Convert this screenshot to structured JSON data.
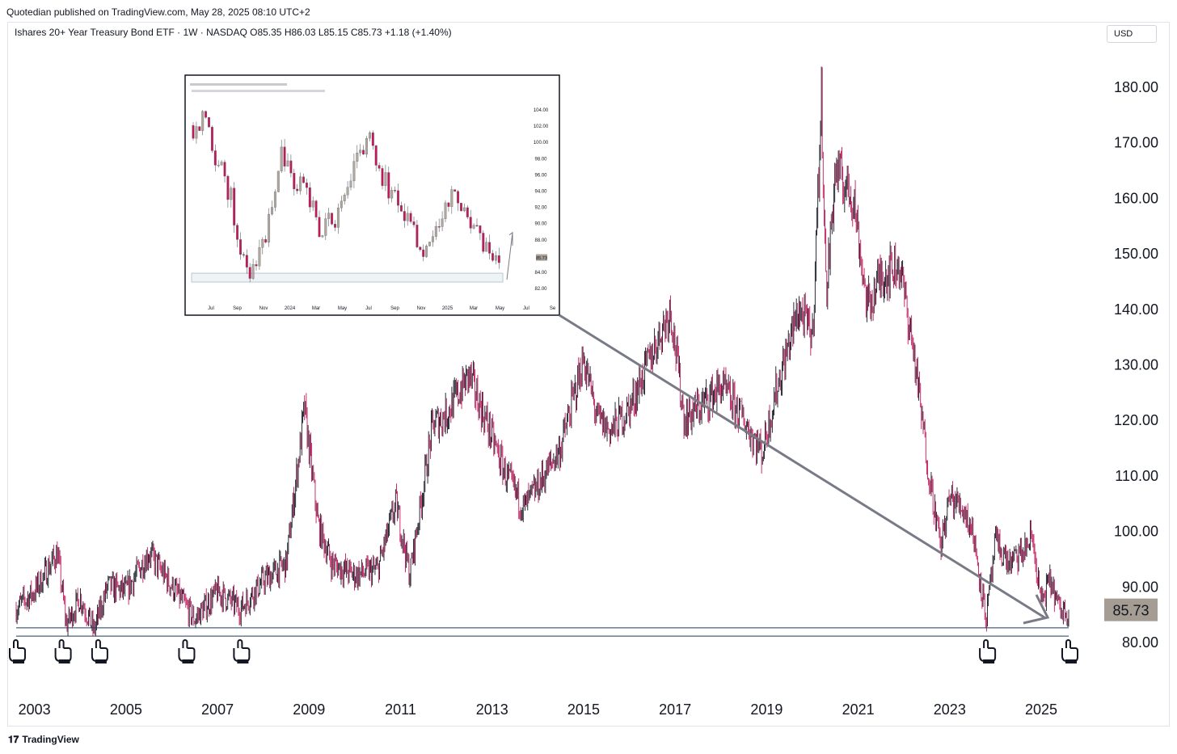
{
  "header": {
    "published": "Quotedian published on TradingView.com, May 28, 2025 08:10 UTC+2",
    "symbol_line": "Ishares 20+ Year Treasury Bond ETF · 1W · NASDAQ  O85.35  H86.03  L85.15  C85.73  +1.18 (+1.40%)",
    "currency": "USD"
  },
  "footer": {
    "brand": "TradingView",
    "logo_glyph": "𝟏𝟕"
  },
  "colors": {
    "up": "#131722",
    "down": "#c2185b",
    "arrow": "#787b86",
    "price_badge": "#a59d93",
    "support": "#1e3a5f"
  },
  "chart_data": [
    {
      "type": "candlestick",
      "title": "",
      "yaxis": {
        "ticks": [
          "180.00",
          "170.00",
          "160.00",
          "150.00",
          "140.00",
          "130.00",
          "120.00",
          "110.00",
          "100.00",
          "90.00",
          "80.00"
        ],
        "ylim": [
          77,
          186
        ]
      },
      "xaxis": {
        "ticks": [
          "2003",
          "2005",
          "2007",
          "2009",
          "2011",
          "2013",
          "2015",
          "2017",
          "2019",
          "2021",
          "2023",
          "2025"
        ],
        "xlim": [
          2002.6,
          2025.6
        ]
      },
      "last_price": "85.73",
      "support_levels": [
        82.5,
        81.0
      ],
      "series": [
        {
          "x": [
            2002.6,
            2003.0,
            2003.5,
            2003.7,
            2004.0,
            2004.3,
            2004.6,
            2005.0,
            2005.5,
            2006.0,
            2006.5,
            2007.0,
            2007.5,
            2008.0,
            2008.5,
            2008.9,
            2009.2,
            2009.5,
            2010.0,
            2010.5,
            2010.9,
            2011.2,
            2011.5,
            2011.7,
            2012.0,
            2012.5,
            2012.9,
            2013.3,
            2013.7,
            2014.0,
            2014.5,
            2015.0,
            2015.3,
            2015.6,
            2016.0,
            2016.5,
            2016.9,
            2017.2,
            2017.5,
            2018.0,
            2018.5,
            2018.9,
            2019.2,
            2019.7,
            2020.0,
            2020.2,
            2020.3,
            2020.5,
            2020.9,
            2021.2,
            2021.5,
            2021.9,
            2022.2,
            2022.5,
            2022.8,
            2023.0,
            2023.3,
            2023.5,
            2023.8,
            2024.0,
            2024.3,
            2024.6,
            2024.8,
            2025.0,
            2025.2,
            2025.4
          ],
          "y": [
            86,
            89,
            96,
            83,
            88,
            82,
            90,
            89,
            96,
            90,
            84,
            89,
            86,
            91,
            94,
            122,
            101,
            94,
            92,
            93,
            105,
            92,
            108,
            119,
            121,
            128,
            119,
            110,
            104,
            108,
            115,
            131,
            120,
            118,
            122,
            132,
            140,
            120,
            122,
            126,
            120,
            114,
            125,
            140,
            135,
            178,
            142,
            165,
            160,
            140,
            146,
            148,
            133,
            113,
            97,
            106,
            104,
            100,
            84,
            98,
            94,
            96,
            99,
            87,
            91,
            85.7
          ]
        }
      ],
      "annotations": [
        {
          "type": "arrow",
          "from": [
            2016.7,
            138
          ],
          "to": [
            2025.0,
            84.5
          ]
        },
        {
          "type": "pointer-marker",
          "x": [
            2002.6,
            2003.6,
            2004.4,
            2006.3,
            2007.5,
            2023.8,
            2025.6
          ],
          "count": 7
        }
      ]
    },
    {
      "type": "candlestick",
      "inset": true,
      "title": "",
      "yaxis": {
        "ticks": [
          "104.00",
          "102.00",
          "100.00",
          "98.00",
          "96.00",
          "94.00",
          "92.00",
          "90.00",
          "88.00",
          "84.00",
          "82.00"
        ],
        "ylim": [
          80.5,
          105
        ]
      },
      "xaxis": {
        "ticks": [
          "Jul",
          "Sep",
          "Nov",
          "2024",
          "Mar",
          "May",
          "Jul",
          "Sep",
          "Nov",
          "2025",
          "Mar",
          "May",
          "Jul",
          "Se"
        ]
      },
      "last_price": "85.73",
      "support_level": 83.4,
      "series": [
        {
          "x": [
            0,
            4,
            8,
            12,
            16,
            20,
            24,
            28,
            32,
            36,
            40,
            44,
            48,
            52,
            56,
            60,
            64,
            68,
            72,
            76,
            80,
            84,
            88,
            92,
            96,
            100
          ],
          "y": [
            102,
            103,
            97,
            93,
            85,
            84,
            90,
            99,
            95,
            94,
            89,
            90,
            92,
            99,
            100,
            96,
            93,
            91,
            87,
            88,
            92,
            93,
            90,
            87,
            85,
            85.7
          ]
        }
      ]
    }
  ]
}
